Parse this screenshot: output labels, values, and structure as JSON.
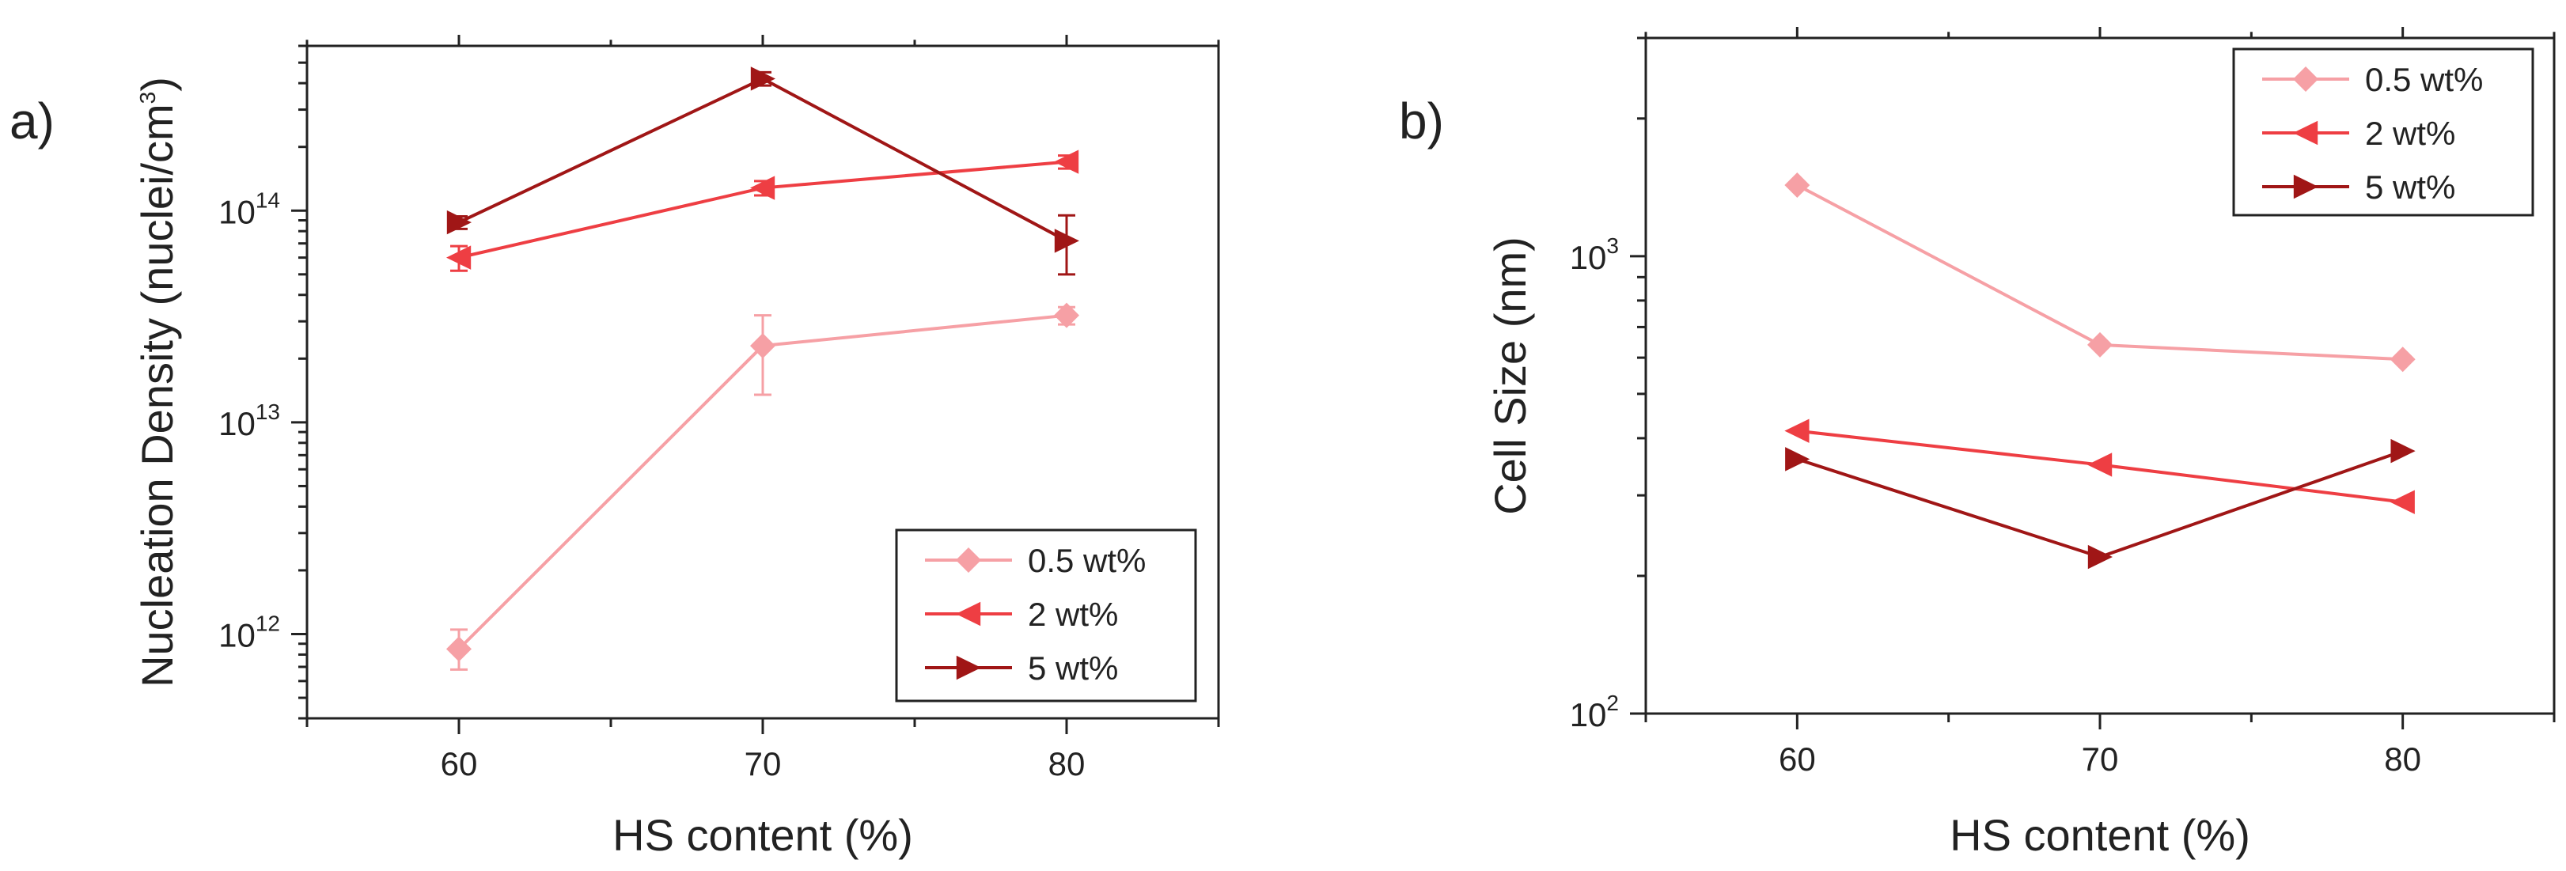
{
  "colors": {
    "axis": "#222222",
    "series_light": "#f6a0a5",
    "series_mid": "#ee3e43",
    "series_dark": "#a01616",
    "background": "#ffffff"
  },
  "chart_data": [
    {
      "panel": "a)",
      "type": "line",
      "title": "",
      "xlabel": "HS content (%)",
      "ylabel": "Nucleation Density (nuclei/cm",
      "ylabel_sup": "3",
      "ylabel_close": ")",
      "yscale": "log",
      "x": [
        60,
        70,
        80
      ],
      "xlim": [
        55,
        85
      ],
      "ylim": [
        400000000000.0,
        600000000000000.0
      ],
      "xticks": [
        60,
        70,
        80
      ],
      "xtick_labels": [
        "60",
        "70",
        "80"
      ],
      "yticks": [
        1000000000000.0,
        10000000000000.0,
        100000000000000.0
      ],
      "ytick_base": "10",
      "ytick_exps": [
        "12",
        "13",
        "14"
      ],
      "legend_position": "bottom-right",
      "series": [
        {
          "name": "0.5 wt%",
          "marker": "diamond",
          "color": "#f6a0a5",
          "values": [
            850000000000.0,
            23000000000000.0,
            32000000000000.0
          ],
          "err_low": [
            680000000000.0,
            13500000000000.0,
            29000000000000.0
          ],
          "err_high": [
            1050000000000.0,
            32000000000000.0,
            35000000000000.0
          ]
        },
        {
          "name": "2 wt%",
          "marker": "triangle-left",
          "color": "#ee3e43",
          "values": [
            60000000000000.0,
            128000000000000.0,
            170000000000000.0
          ],
          "err_low": [
            52000000000000.0,
            118000000000000.0,
            158000000000000.0
          ],
          "err_high": [
            68000000000000.0,
            138000000000000.0,
            182000000000000.0
          ]
        },
        {
          "name": "5 wt%",
          "marker": "triangle-right",
          "color": "#a01616",
          "values": [
            88000000000000.0,
            420000000000000.0,
            72000000000000.0
          ],
          "err_low": [
            82000000000000.0,
            390000000000000.0,
            50000000000000.0
          ],
          "err_high": [
            94000000000000.0,
            450000000000000.0,
            95000000000000.0
          ]
        }
      ]
    },
    {
      "panel": "b)",
      "type": "line",
      "title": "",
      "xlabel": "HS content (%)",
      "ylabel": "Cell Size (nm)",
      "yscale": "log",
      "x": [
        60,
        70,
        80
      ],
      "xlim": [
        55,
        85
      ],
      "ylim": [
        100,
        3000
      ],
      "xticks": [
        60,
        70,
        80
      ],
      "xtick_labels": [
        "60",
        "70",
        "80"
      ],
      "yticks": [
        100,
        1000
      ],
      "ytick_base": "10",
      "ytick_exps": [
        "2",
        "3"
      ],
      "legend_position": "top-right",
      "series": [
        {
          "name": "0.5 wt%",
          "marker": "diamond",
          "color": "#f6a0a5",
          "values": [
            1430,
            640,
            595
          ]
        },
        {
          "name": "2 wt%",
          "marker": "triangle-left",
          "color": "#ee3e43",
          "values": [
            415,
            350,
            290
          ]
        },
        {
          "name": "5 wt%",
          "marker": "triangle-right",
          "color": "#a01616",
          "values": [
            360,
            220,
            375
          ]
        }
      ]
    }
  ]
}
